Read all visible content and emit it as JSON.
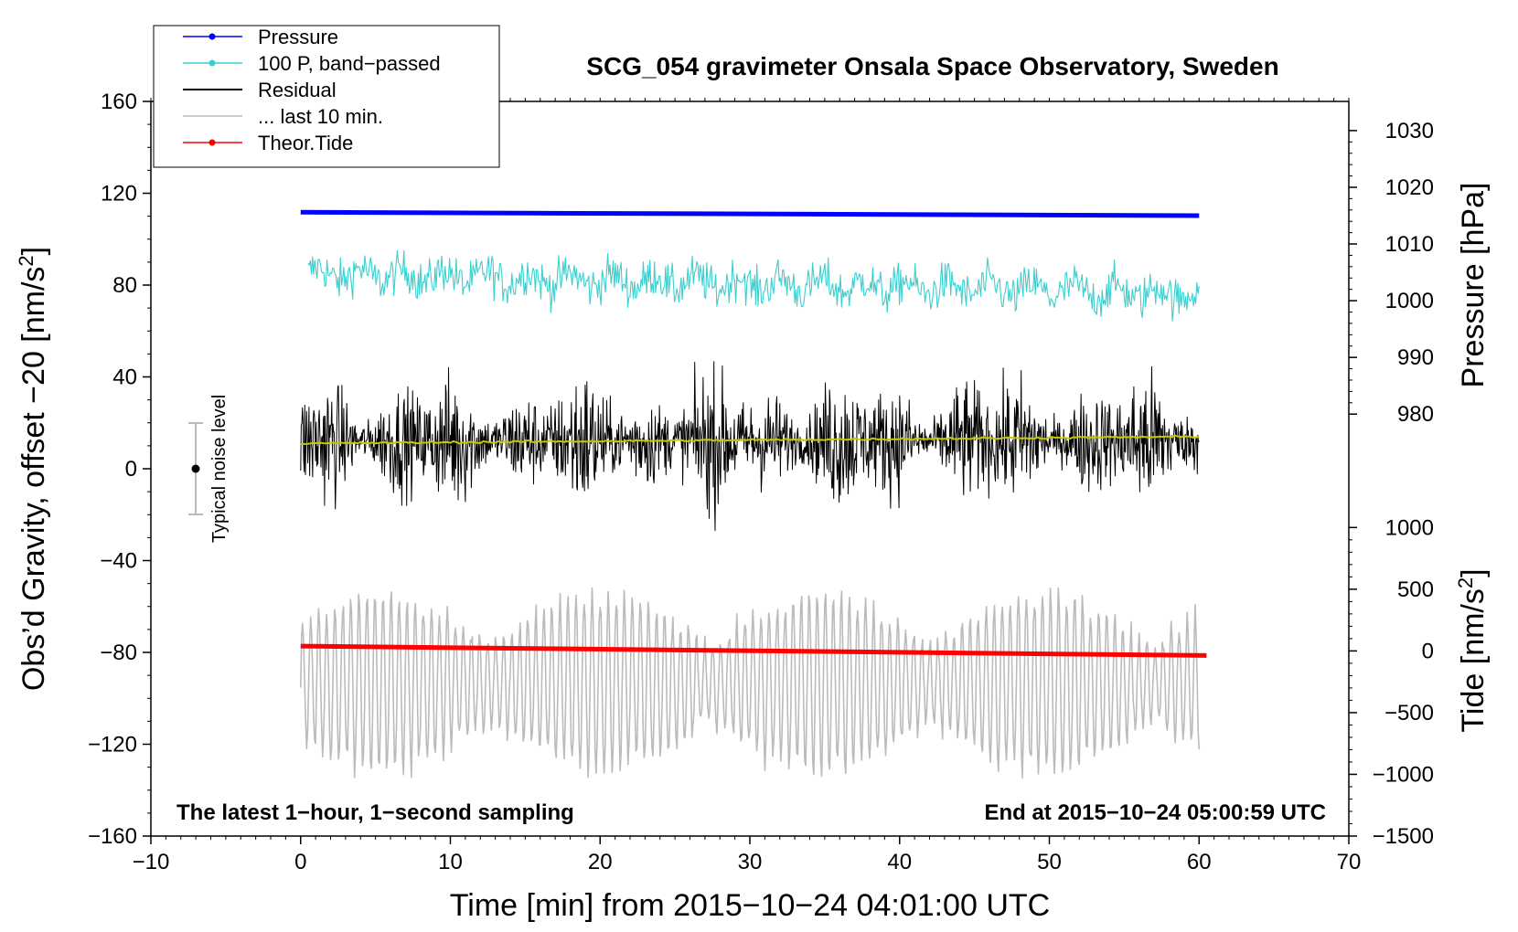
{
  "chart_data": {
    "type": "line",
    "title": "SCG_054 gravimeter Onsala Space Observatory, Sweden",
    "xlabel": "Time [min] from 2015−10−24 04:01:00 UTC",
    "ylabel_main": "Obs’d Gravity, offset −20 [nm/s",
    "ylabel_main_sup": "2",
    "ylabel_main_end": "]",
    "ylabel_pressure": "Pressure [hPa]",
    "ylabel_tide": "Tide [nm/s",
    "ylabel_tide_sup": "2",
    "ylabel_tide_end": "]",
    "xlim": [
      -10,
      70
    ],
    "ylim": [
      -160,
      160
    ],
    "x_ticks": [
      -10,
      0,
      10,
      20,
      30,
      40,
      50,
      60,
      70
    ],
    "x_tick_labels": [
      "−10",
      "0",
      "10",
      "20",
      "30",
      "40",
      "50",
      "60",
      "70"
    ],
    "y_ticks": [
      -160,
      -120,
      -80,
      -40,
      0,
      40,
      80,
      120,
      160
    ],
    "y_tick_labels": [
      "−160",
      "−120",
      "−80",
      "−40",
      "0",
      "40",
      "80",
      "120",
      "160"
    ],
    "pressure_axis": {
      "ticks": [
        980,
        990,
        1000,
        1010,
        1020,
        1030
      ],
      "tick_labels": [
        "980",
        "990",
        "1000",
        "1010",
        "1020",
        "1030"
      ],
      "maps_to_gravity": {
        "value_a": 980,
        "gravity_a": 23.8,
        "value_b": 1030,
        "gravity_b": 147.3
      }
    },
    "tide_axis": {
      "ticks": [
        -1500,
        -1000,
        -500,
        0,
        500,
        1000
      ],
      "tick_labels": [
        "−1500",
        "−1000",
        "−500",
        "0",
        "500",
        "1000"
      ],
      "maps_to_gravity": {
        "value_a": -1500,
        "gravity_a": -160,
        "value_b": 1000,
        "gravity_b": -25.6
      }
    },
    "legend": {
      "position": "top-left",
      "entries": [
        {
          "label": "Pressure",
          "color": "#0000ff",
          "marker": true
        },
        {
          "label": "100 P, band−passed",
          "color": "#3ccfcf",
          "marker": true
        },
        {
          "label": "Residual",
          "color": "#000000",
          "marker": false
        },
        {
          "label": "... last 10 min.",
          "color": "#bbbbbb",
          "marker": false
        },
        {
          "label": "Theor.Tide",
          "color": "#ff0000",
          "marker": true
        }
      ]
    },
    "series": [
      {
        "name": "Pressure",
        "color": "#0000ff",
        "x": [
          0,
          60
        ],
        "y": [
          1015.6,
          1015.0
        ],
        "units": "hPa",
        "axis": "pressure"
      },
      {
        "name": "100 P, band−passed",
        "color": "#3ccfcf",
        "x_range": [
          0.5,
          60
        ],
        "baseline_start": 85,
        "baseline_end": 76,
        "amplitude": 7,
        "min": 62,
        "max": 95,
        "axis": "gravity"
      },
      {
        "name": "Residual",
        "color": "#000000",
        "x_range": [
          0,
          60
        ],
        "baseline": 12,
        "min": -36,
        "max": 62,
        "axis": "gravity"
      },
      {
        "name": "Residual smoothed",
        "color": "#c8c800",
        "x": [
          0,
          60
        ],
        "y": [
          11,
          14
        ],
        "axis": "gravity"
      },
      {
        "name": "... last 10 min.",
        "color": "#bbbbbb",
        "x_range": [
          0,
          60
        ],
        "baseline": -93,
        "min": -140,
        "max": -52,
        "axis": "gravity"
      },
      {
        "name": "Theor.Tide",
        "color": "#ff0000",
        "x": [
          0,
          60.5
        ],
        "y": [
          39,
          -37
        ],
        "units": "nm/s2",
        "axis": "tide"
      }
    ],
    "noise_bar": {
      "label": "Typical noise level",
      "x": -7,
      "y": 0,
      "yerr": 20
    },
    "annotations": {
      "bottom_left": "The latest 1−hour, 1−second sampling",
      "bottom_right": "End at 2015−10−24 05:00:59 UTC"
    }
  }
}
